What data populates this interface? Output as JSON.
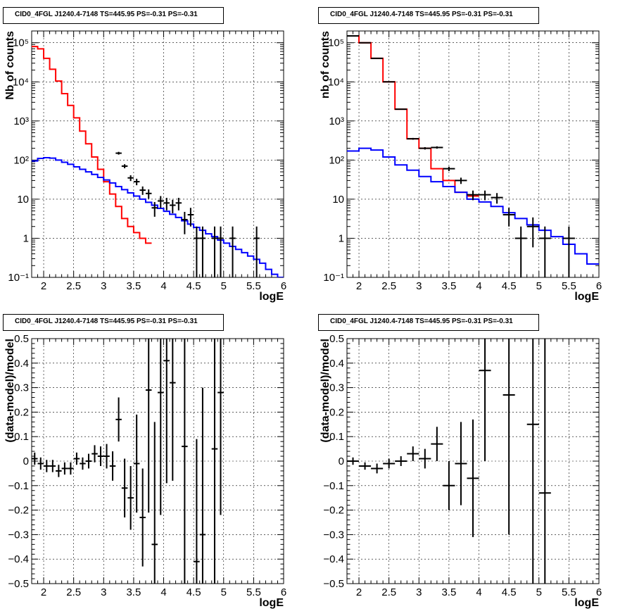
{
  "chart_data": [
    {
      "type": "histogram",
      "title": "CID0_4FGL J1240.4-7148 TS=445.95 PS=-0.31 PS=-0.31",
      "xlabel": "logE",
      "ylabel": "Nb of counts",
      "xlim": [
        1.8,
        6.0
      ],
      "ylim": [
        0.1,
        200000
      ],
      "yscale": "log",
      "grid": true,
      "xticks": [
        "2",
        "2.5",
        "3",
        "3.5",
        "4",
        "4.5",
        "5",
        "5.5",
        "6"
      ],
      "yticks": [
        "10⁻¹",
        "1",
        "10",
        "10²",
        "10³",
        "10⁴",
        "10⁵"
      ],
      "bin_edges": [
        1.8,
        1.9,
        2.0,
        2.1,
        2.2,
        2.3,
        2.4,
        2.5,
        2.6,
        2.7,
        2.8,
        2.9,
        3.0,
        3.1,
        3.2,
        3.3,
        3.4,
        3.5,
        3.6,
        3.7,
        3.8,
        3.9,
        4.0,
        4.1,
        4.2,
        4.3,
        4.4,
        4.5,
        4.6,
        4.7,
        4.8,
        4.9,
        5.0,
        5.1,
        5.2,
        5.3,
        5.4,
        5.5,
        5.6,
        5.7,
        5.8,
        5.9,
        6.0
      ],
      "series": [
        {
          "color": "#ff0000",
          "kind": "step",
          "values": [
            80000,
            70000,
            40000,
            21000,
            10500,
            5000,
            2500,
            1200,
            550,
            260,
            120,
            58,
            28,
            13.5,
            6.5,
            3.2,
            2.0,
            1.4,
            1.0,
            0.75
          ]
        },
        {
          "color": "#0000ff",
          "kind": "step",
          "values": [
            95,
            110,
            115,
            112,
            100,
            88,
            78,
            67,
            58,
            50,
            43,
            36,
            31,
            26,
            21,
            17.5,
            14.5,
            12,
            10,
            8.3,
            7,
            5.8,
            4.9,
            4.1,
            3.4,
            2.8,
            2.3,
            1.9,
            1.6,
            1.3,
            1.1,
            0.9,
            0.75,
            0.62,
            0.52,
            0.43,
            0.35,
            0.29,
            0.23,
            0.16,
            0.12,
            0.09
          ]
        },
        {
          "color": "#000000",
          "kind": "points",
          "x": [
            3.25,
            3.35,
            3.45,
            3.55,
            3.65,
            3.75,
            3.85,
            3.95,
            4.05,
            4.15,
            4.25,
            4.35,
            4.45,
            4.55,
            4.65,
            4.85,
            4.95,
            5.15,
            5.55
          ],
          "y": [
            150,
            70,
            35,
            28,
            17,
            14,
            6,
            9,
            8,
            7,
            8,
            3,
            4,
            1,
            1,
            1,
            1,
            1,
            1
          ]
        }
      ]
    },
    {
      "type": "histogram",
      "title": "CID0_4FGL J1240.4-7148 TS=445.95 PS=-0.31 PS=-0.31",
      "xlabel": "logE",
      "ylabel": "nb of counts",
      "xlim": [
        1.8,
        6.0
      ],
      "ylim": [
        0.1,
        200000
      ],
      "yscale": "log",
      "grid": true,
      "xticks": [
        "2",
        "2.5",
        "3",
        "3.5",
        "4",
        "4.5",
        "5",
        "5.5",
        "6"
      ],
      "yticks": [
        "10⁻¹",
        "1",
        "10",
        "10²",
        "10³",
        "10⁴",
        "10⁵"
      ],
      "bin_edges": [
        1.8,
        2.0,
        2.2,
        2.4,
        2.6,
        2.8,
        3.0,
        3.2,
        3.4,
        3.6,
        3.8,
        4.0,
        4.2,
        4.4,
        4.6,
        4.8,
        5.0,
        5.2,
        5.4,
        5.6,
        5.8,
        6.0
      ],
      "series": [
        {
          "color": "#ff0000",
          "kind": "step",
          "values": [
            150000,
            100000,
            40000,
            10000,
            2000,
            350,
            200,
            60,
            30,
            15,
            12
          ]
        },
        {
          "color": "#0000ff",
          "kind": "step",
          "values": [
            170,
            200,
            180,
            120,
            75,
            55,
            38,
            28,
            21,
            15,
            10,
            8.5,
            6.5,
            4.5,
            3.2,
            2.2,
            1.6,
            1.1,
            0.7,
            0.4,
            0.22
          ]
        },
        {
          "color": "#000000",
          "kind": "points",
          "x": [
            1.9,
            2.1,
            2.3,
            2.5,
            2.7,
            2.9,
            3.1,
            3.3,
            3.5,
            3.7,
            3.9,
            4.1,
            4.3,
            4.5,
            4.7,
            4.9,
            5.1,
            5.5
          ],
          "y": [
            150000,
            100000,
            40000,
            10000,
            2000,
            350,
            200,
            210,
            60,
            30,
            13,
            13,
            11,
            4,
            1,
            2,
            1,
            1
          ]
        }
      ]
    },
    {
      "type": "errorbar",
      "title": "CID0_4FGL J1240.4-7148 TS=445.95 PS=-0.31 PS=-0.31",
      "xlabel": "logE",
      "ylabel": "(data-model)/model",
      "xlim": [
        1.8,
        6.0
      ],
      "ylim": [
        -0.5,
        0.5
      ],
      "grid": true,
      "xticks": [
        "2",
        "2.5",
        "3",
        "3.5",
        "4",
        "4.5",
        "5",
        "5.5",
        "6"
      ],
      "yticks": [
        "−0.5",
        "−0.4",
        "−0.3",
        "−0.2",
        "−0.1",
        "0",
        "0.1",
        "0.2",
        "0.3",
        "0.4",
        "0.5"
      ],
      "points": {
        "x": [
          1.85,
          1.95,
          2.05,
          2.15,
          2.25,
          2.35,
          2.45,
          2.55,
          2.65,
          2.75,
          2.85,
          2.95,
          3.05,
          3.15,
          3.25,
          3.35,
          3.45,
          3.55,
          3.65,
          3.75,
          3.85,
          3.95,
          4.05,
          4.15,
          4.35,
          4.55,
          4.65,
          4.85,
          4.95
        ],
        "y": [
          0.01,
          -0.01,
          -0.02,
          -0.02,
          -0.04,
          -0.03,
          -0.03,
          0.01,
          -0.01,
          0.0,
          0.03,
          0.02,
          0.02,
          -0.02,
          0.17,
          -0.11,
          -0.15,
          -0.01,
          -0.23,
          0.29,
          -0.34,
          0.28,
          0.41,
          0.32,
          0.06,
          -0.41,
          -0.3,
          0.05,
          0.28
        ],
        "err": [
          0.025,
          0.025,
          0.025,
          0.025,
          0.025,
          0.025,
          0.025,
          0.025,
          0.025,
          0.03,
          0.035,
          0.04,
          0.05,
          0.06,
          0.09,
          0.12,
          0.13,
          0.2,
          0.2,
          0.5,
          0.5,
          0.5,
          0.5,
          0.4,
          0.7,
          0.5,
          0.6,
          0.7,
          0.5
        ],
        "xerr": 0.05
      }
    },
    {
      "type": "errorbar",
      "title": "CID0_4FGL J1240.4-7148 TS=445.95 PS=-0.31 PS=-0.31",
      "xlabel": "logE",
      "ylabel": "(data-model)/model",
      "xlim": [
        1.8,
        6.0
      ],
      "ylim": [
        -0.5,
        0.5
      ],
      "grid": true,
      "xticks": [
        "2",
        "2.5",
        "3",
        "3.5",
        "4",
        "4.5",
        "5",
        "5.5",
        "6"
      ],
      "yticks": [
        "−0.5",
        "−0.4",
        "−0.3",
        "−0.2",
        "−0.1",
        "0",
        "0.1",
        "0.2",
        "0.3",
        "0.4",
        "0.5"
      ],
      "points": {
        "x": [
          1.9,
          2.1,
          2.3,
          2.5,
          2.7,
          2.9,
          3.1,
          3.3,
          3.5,
          3.7,
          3.9,
          4.1,
          4.5,
          4.9,
          5.1
        ],
        "y": [
          0.0,
          -0.02,
          -0.03,
          -0.01,
          0.0,
          0.03,
          0.01,
          0.07,
          -0.1,
          -0.01,
          -0.07,
          0.37,
          0.27,
          0.15,
          -0.13
        ],
        "err": [
          0.015,
          0.015,
          0.02,
          0.02,
          0.02,
          0.03,
          0.04,
          0.07,
          0.1,
          0.17,
          0.24,
          0.37,
          0.57,
          0.7,
          0.7
        ],
        "xerr": 0.1
      }
    }
  ]
}
